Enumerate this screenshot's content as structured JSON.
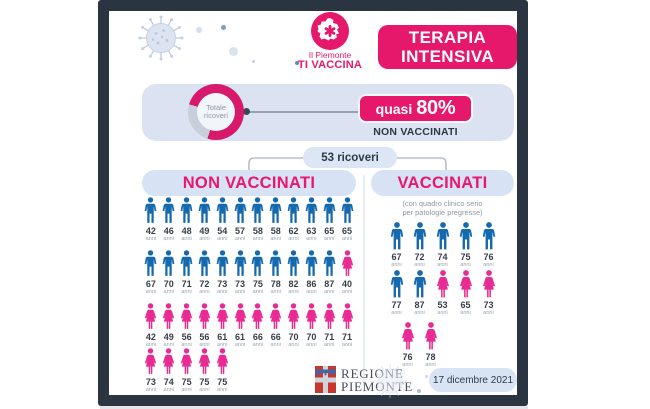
{
  "header": {
    "logo_line1": "Il Piemonte",
    "logo_line2": "TI VACCINA",
    "title_line1": "TERAPIA",
    "title_line2": "INTENSIVA"
  },
  "summary": {
    "donut_label_line1": "Totale",
    "donut_label_line2": "ricoveri",
    "highlight_prefix": "quasi",
    "highlight_value": "80%",
    "highlight_sub": "NON VACCINATI"
  },
  "total_label": "53 ricoveri",
  "columns": {
    "non_vaccinati": {
      "title": "NON VACCINATI",
      "rows": [
        [
          {
            "age": 42,
            "sex": "m"
          },
          {
            "age": 46,
            "sex": "m"
          },
          {
            "age": 48,
            "sex": "m"
          },
          {
            "age": 49,
            "sex": "m"
          },
          {
            "age": 54,
            "sex": "m"
          },
          {
            "age": 57,
            "sex": "m"
          },
          {
            "age": 58,
            "sex": "m"
          },
          {
            "age": 58,
            "sex": "m"
          },
          {
            "age": 62,
            "sex": "m"
          },
          {
            "age": 63,
            "sex": "m"
          },
          {
            "age": 65,
            "sex": "m"
          },
          {
            "age": 65,
            "sex": "m"
          }
        ],
        [
          {
            "age": 67,
            "sex": "m"
          },
          {
            "age": 70,
            "sex": "m"
          },
          {
            "age": 71,
            "sex": "m"
          },
          {
            "age": 72,
            "sex": "m"
          },
          {
            "age": 73,
            "sex": "m"
          },
          {
            "age": 73,
            "sex": "m"
          },
          {
            "age": 75,
            "sex": "m"
          },
          {
            "age": 78,
            "sex": "m"
          },
          {
            "age": 82,
            "sex": "m"
          },
          {
            "age": 86,
            "sex": "m"
          },
          {
            "age": 87,
            "sex": "m"
          },
          {
            "age": 40,
            "sex": "f"
          }
        ],
        [
          {
            "age": 42,
            "sex": "f"
          },
          {
            "age": 49,
            "sex": "f"
          },
          {
            "age": 56,
            "sex": "f"
          },
          {
            "age": 56,
            "sex": "f"
          },
          {
            "age": 61,
            "sex": "f"
          },
          {
            "age": 61,
            "sex": "f"
          },
          {
            "age": 66,
            "sex": "f"
          },
          {
            "age": 66,
            "sex": "f"
          },
          {
            "age": 70,
            "sex": "f"
          },
          {
            "age": 70,
            "sex": "f"
          },
          {
            "age": 71,
            "sex": "f"
          },
          {
            "age": 71,
            "sex": "f"
          }
        ],
        [
          {
            "age": 73,
            "sex": "f"
          },
          {
            "age": 74,
            "sex": "f"
          },
          {
            "age": 75,
            "sex": "f"
          },
          {
            "age": 75,
            "sex": "f"
          },
          {
            "age": 75,
            "sex": "f"
          }
        ]
      ]
    },
    "vaccinati": {
      "title": "VACCINATI",
      "subtitle_line1": "(con quadro clinico serio",
      "subtitle_line2": "per patologie pregresse)",
      "rows": [
        [
          {
            "age": 67,
            "sex": "m"
          },
          {
            "age": 72,
            "sex": "m"
          },
          {
            "age": 74,
            "sex": "m"
          },
          {
            "age": 75,
            "sex": "m"
          },
          {
            "age": 76,
            "sex": "m"
          }
        ],
        [
          {
            "age": 77,
            "sex": "m"
          },
          {
            "age": 87,
            "sex": "m"
          },
          {
            "age": 53,
            "sex": "f"
          },
          {
            "age": 65,
            "sex": "f"
          },
          {
            "age": 73,
            "sex": "f"
          }
        ],
        [
          {
            "age": 76,
            "sex": "f"
          },
          {
            "age": 78,
            "sex": "f"
          }
        ]
      ]
    }
  },
  "footer": {
    "region_line1": "REGIONE",
    "region_line2": "PIEMONTE",
    "date": "17 dicembre 2021"
  },
  "units": {
    "age": "anni"
  },
  "colors": {
    "male": "#1569ae",
    "female": "#e82a93",
    "brand_pink": "#e6186b",
    "navy_frame": "#2b3542",
    "panel_lavender": "#dbe2f1",
    "chip_blue": "#d7e3f4",
    "text_navy": "#2c3948"
  },
  "chart_data": {
    "type": "pictogram",
    "title": "TERAPIA INTENSIVA",
    "date": "17 dicembre 2021",
    "total_ricoveri": 53,
    "donut": {
      "type": "pie",
      "label": "Totale ricoveri",
      "slices": [
        {
          "name": "NON VACCINATI",
          "pct": 77.4,
          "label": "quasi 80%"
        },
        {
          "name": "VACCINATI",
          "pct": 22.6
        }
      ]
    },
    "groups": [
      {
        "name": "NON VACCINATI",
        "count": 41,
        "male_ages": [
          42,
          46,
          48,
          49,
          54,
          57,
          58,
          58,
          62,
          63,
          65,
          65,
          67,
          70,
          71,
          72,
          73,
          73,
          75,
          78,
          82,
          86,
          87
        ],
        "female_ages": [
          40,
          42,
          49,
          56,
          56,
          61,
          61,
          66,
          66,
          70,
          70,
          71,
          71,
          73,
          74,
          75,
          75,
          75
        ]
      },
      {
        "name": "VACCINATI",
        "note": "con quadro clinico serio per patologie pregresse",
        "count": 12,
        "male_ages": [
          67,
          72,
          74,
          75,
          76,
          77,
          87
        ],
        "female_ages": [
          53,
          65,
          73,
          76,
          78
        ]
      }
    ]
  }
}
